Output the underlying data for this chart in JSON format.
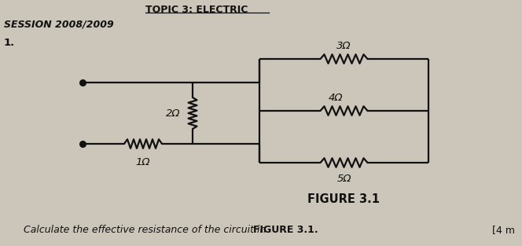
{
  "title": "TOPIC 3: ELECTRIC",
  "session": "SESSION 2008/2009",
  "question_num": "1.",
  "figure_label": "FIGURE 3.1",
  "question_text": "Calculate the effective resistance of the circuit in ",
  "question_bold": "FIGURE 3.1.",
  "marks": "[4 m",
  "R1": "1Ω",
  "R2": "2Ω",
  "R3": "3Ω",
  "R4": "4Ω",
  "R5": "5Ω",
  "bg_color": "#ccc5b9",
  "line_color": "#111111"
}
